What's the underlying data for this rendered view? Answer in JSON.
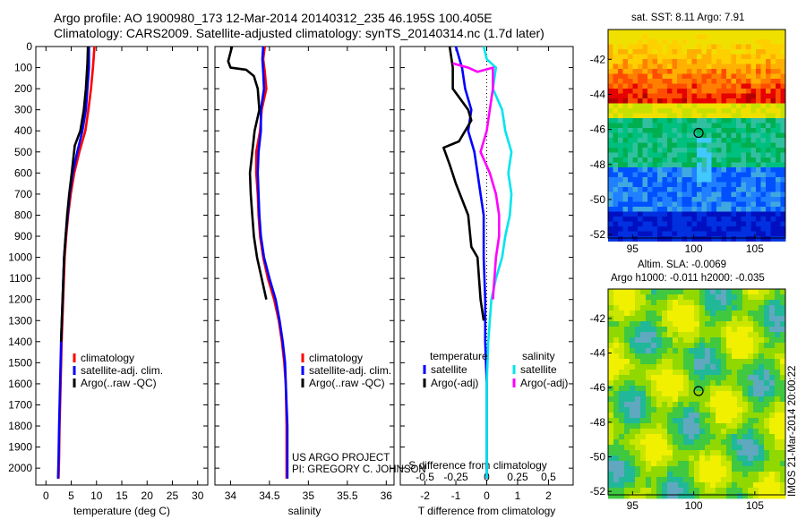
{
  "header": {
    "line1": "Argo profile: AO 1900980_173 12-Mar-2014 20140312_235 46.195S 100.405E",
    "line2": "Climatology: CARS2009. Satellite-adjusted climatology: synTS_20140314.nc (1.7d later)"
  },
  "credit": {
    "line1": "US ARGO PROJECT",
    "line2": "PI: GREGORY C. JOHNSON"
  },
  "imos_stamp": "IMOS 21-Mar-2014 20:00:22",
  "colors": {
    "climatology": "#ff0000",
    "satellite": "#0000ff",
    "argo": "#000000",
    "salinity_satellite": "#00e5ee",
    "salinity_argo": "#ff00ff"
  },
  "chart_data": [
    {
      "type": "line",
      "id": "temperature",
      "xlabel": "temperature (deg C)",
      "xlim": [
        -2,
        32
      ],
      "xticks": [
        0,
        5,
        10,
        15,
        20,
        25,
        30
      ],
      "ylim": [
        0,
        2080
      ],
      "yticks": [
        0,
        100,
        200,
        300,
        400,
        500,
        600,
        700,
        800,
        900,
        1000,
        1100,
        1200,
        1300,
        1400,
        1500,
        1600,
        1700,
        1800,
        1900,
        2000
      ],
      "legend": [
        "climatology",
        "satellite-adj. clim.",
        "Argo(..raw -QC)"
      ],
      "series": [
        {
          "name": "climatology",
          "color": "#ff0000",
          "points": [
            [
              9.6,
              0
            ],
            [
              9.3,
              100
            ],
            [
              8.9,
              200
            ],
            [
              8.4,
              300
            ],
            [
              7.8,
              400
            ],
            [
              6.6,
              500
            ],
            [
              5.6,
              600
            ],
            [
              4.9,
              700
            ],
            [
              4.4,
              800
            ],
            [
              4.0,
              900
            ],
            [
              3.7,
              1000
            ],
            [
              3.4,
              1200
            ],
            [
              3.1,
              1400
            ],
            [
              2.9,
              1600
            ],
            [
              2.7,
              1800
            ],
            [
              2.6,
              1950
            ],
            [
              2.5,
              2050
            ]
          ]
        },
        {
          "name": "satellite-adj. clim.",
          "color": "#0000ff",
          "points": [
            [
              8.5,
              0
            ],
            [
              8.5,
              100
            ],
            [
              8.2,
              200
            ],
            [
              7.9,
              300
            ],
            [
              7.2,
              400
            ],
            [
              6.2,
              500
            ],
            [
              5.3,
              600
            ],
            [
              4.7,
              700
            ],
            [
              4.3,
              800
            ],
            [
              3.9,
              900
            ],
            [
              3.6,
              1000
            ],
            [
              3.3,
              1200
            ],
            [
              3.0,
              1400
            ],
            [
              2.8,
              1600
            ],
            [
              2.6,
              1800
            ],
            [
              2.5,
              1950
            ],
            [
              2.4,
              2050
            ]
          ]
        },
        {
          "name": "Argo(..raw -QC)",
          "color": "#000000",
          "points": [
            [
              8.3,
              0
            ],
            [
              8.2,
              80
            ],
            [
              7.9,
              200
            ],
            [
              7.5,
              300
            ],
            [
              6.8,
              400
            ],
            [
              5.7,
              470
            ],
            [
              5.1,
              600
            ],
            [
              4.6,
              700
            ],
            [
              4.2,
              800
            ],
            [
              3.9,
              900
            ],
            [
              3.6,
              1000
            ],
            [
              3.3,
              1200
            ],
            [
              3.0,
              1400
            ]
          ]
        }
      ]
    },
    {
      "type": "line",
      "id": "salinity",
      "xlabel": "salinity",
      "xlim": [
        33.8,
        36.1
      ],
      "xticks": [
        34,
        34.5,
        35,
        35.5,
        36
      ],
      "ylim": [
        0,
        2080
      ],
      "yticks": [
        0,
        100,
        200,
        300,
        400,
        500,
        600,
        700,
        800,
        900,
        1000,
        1100,
        1200,
        1300,
        1400,
        1500,
        1600,
        1700,
        1800,
        1900,
        2000
      ],
      "legend": [
        "climatology",
        "satellite-adj. clim.",
        "Argo(..raw -QC)"
      ],
      "series": [
        {
          "name": "climatology",
          "color": "#ff0000",
          "points": [
            [
              34.44,
              0
            ],
            [
              34.42,
              60
            ],
            [
              34.44,
              120
            ],
            [
              34.46,
              200
            ],
            [
              34.4,
              300
            ],
            [
              34.38,
              400
            ],
            [
              34.33,
              500
            ],
            [
              34.33,
              600
            ],
            [
              34.35,
              700
            ],
            [
              34.36,
              800
            ],
            [
              34.38,
              900
            ],
            [
              34.42,
              1000
            ],
            [
              34.48,
              1100
            ],
            [
              34.56,
              1200
            ],
            [
              34.62,
              1300
            ],
            [
              34.66,
              1400
            ],
            [
              34.69,
              1500
            ],
            [
              34.71,
              1600
            ],
            [
              34.72,
              1800
            ],
            [
              34.72,
              2050
            ]
          ]
        },
        {
          "name": "satellite-adj. clim.",
          "color": "#0000ff",
          "points": [
            [
              34.42,
              0
            ],
            [
              34.41,
              60
            ],
            [
              34.42,
              120
            ],
            [
              34.43,
              200
            ],
            [
              34.39,
              300
            ],
            [
              34.39,
              400
            ],
            [
              34.36,
              500
            ],
            [
              34.35,
              600
            ],
            [
              34.36,
              700
            ],
            [
              34.37,
              800
            ],
            [
              34.39,
              900
            ],
            [
              34.43,
              1000
            ],
            [
              34.5,
              1100
            ],
            [
              34.58,
              1200
            ],
            [
              34.63,
              1300
            ],
            [
              34.67,
              1400
            ],
            [
              34.7,
              1500
            ],
            [
              34.71,
              1600
            ],
            [
              34.73,
              1800
            ],
            [
              34.73,
              2050
            ]
          ]
        },
        {
          "name": "Argo(..raw -QC)",
          "color": "#000000",
          "points": [
            [
              34.02,
              0
            ],
            [
              33.97,
              70
            ],
            [
              34.0,
              100
            ],
            [
              34.2,
              110
            ],
            [
              34.3,
              140
            ],
            [
              34.35,
              200
            ],
            [
              34.37,
              300
            ],
            [
              34.31,
              400
            ],
            [
              34.28,
              500
            ],
            [
              34.25,
              600
            ],
            [
              34.26,
              700
            ],
            [
              34.28,
              800
            ],
            [
              34.3,
              900
            ],
            [
              34.34,
              1000
            ],
            [
              34.4,
              1100
            ],
            [
              34.46,
              1200
            ]
          ]
        }
      ]
    },
    {
      "type": "line",
      "id": "differences",
      "xlabel": "T difference from climatology",
      "xlim": [
        -2.8,
        2.8
      ],
      "xticks": [
        -2,
        -1,
        0,
        1,
        2
      ],
      "top_label": "S difference from climatology",
      "top_ticks": [
        "-0.5",
        "-0.25",
        "0",
        "0.25",
        "0.5"
      ],
      "top_tick_values": [
        -2,
        -1,
        0,
        1,
        2
      ],
      "ylim": [
        0,
        2080
      ],
      "legend_headers": [
        "temperature",
        "salinity"
      ],
      "legend": [
        "satellite",
        "Argo(-adj)",
        "satellite",
        "Argo(-adj)"
      ],
      "series": [
        {
          "name": "satellite",
          "color": "#0000ff",
          "points": [
            [
              -1.0,
              0
            ],
            [
              -0.8,
              100
            ],
            [
              -0.7,
              200
            ],
            [
              -0.5,
              300
            ],
            [
              -0.6,
              400
            ],
            [
              -0.4,
              500
            ],
            [
              -0.3,
              600
            ],
            [
              -0.2,
              700
            ],
            [
              -0.1,
              800
            ],
            [
              -0.1,
              1000
            ],
            [
              -0.05,
              1200
            ],
            [
              -0.05,
              1400
            ],
            [
              0,
              1600
            ],
            [
              0,
              2050
            ]
          ]
        },
        {
          "name": "Argo(-adj)",
          "color": "#000000",
          "points": [
            [
              -1.2,
              0
            ],
            [
              -1.1,
              100
            ],
            [
              -1.1,
              200
            ],
            [
              -0.6,
              300
            ],
            [
              -0.5,
              350
            ],
            [
              -0.9,
              450
            ],
            [
              -1.4,
              480
            ],
            [
              -1.2,
              560
            ],
            [
              -1.0,
              650
            ],
            [
              -0.6,
              800
            ],
            [
              -0.5,
              950
            ],
            [
              -0.3,
              1000
            ],
            [
              -0.2,
              1200
            ],
            [
              -0.1,
              1300
            ]
          ]
        },
        {
          "name": "satellite",
          "color": "#00e5ee",
          "points": [
            [
              -0.1,
              0
            ],
            [
              0,
              60
            ],
            [
              0.3,
              100
            ],
            [
              0.2,
              200
            ],
            [
              0.5,
              300
            ],
            [
              0.6,
              400
            ],
            [
              0.8,
              500
            ],
            [
              0.7,
              600
            ],
            [
              0.8,
              700
            ],
            [
              0.75,
              800
            ],
            [
              0.6,
              900
            ],
            [
              0.5,
              1000
            ],
            [
              0.3,
              1100
            ],
            [
              0.15,
              1200
            ],
            [
              0.05,
              1400
            ],
            [
              0,
              1600
            ],
            [
              0,
              2050
            ]
          ]
        },
        {
          "name": "Argo(-adj)",
          "color": "#ff00ff",
          "points": [
            [
              -1.1,
              80
            ],
            [
              -0.6,
              100
            ],
            [
              -0.3,
              120
            ],
            [
              0.2,
              100
            ],
            [
              0.2,
              200
            ],
            [
              0.1,
              300
            ],
            [
              0.0,
              400
            ],
            [
              -0.2,
              500
            ],
            [
              0.1,
              600
            ],
            [
              0.3,
              700
            ],
            [
              0.4,
              800
            ],
            [
              0.4,
              900
            ],
            [
              0.3,
              1000
            ],
            [
              0.2,
              1200
            ]
          ]
        }
      ]
    },
    {
      "type": "heatmap",
      "id": "sst_map",
      "title": "sat. SST: 8.11  Argo: 7.91",
      "xticks": [
        95,
        100,
        105
      ],
      "yticks": [
        -42,
        -44,
        -46,
        -48,
        -50,
        -52
      ],
      "xlim": [
        93,
        107.5
      ],
      "ylim": [
        -52.2,
        -40.3
      ],
      "marker": [
        100.4,
        -46.2
      ]
    },
    {
      "type": "heatmap",
      "id": "sla_map",
      "title_line1": "Altim. SLA: -0.0069",
      "title_line2": "Argo h1000: -0.011 h2000: -0.035",
      "xticks": [
        95,
        100,
        105
      ],
      "yticks": [
        -42,
        -44,
        -46,
        -48,
        -50,
        -52
      ],
      "xlim": [
        93,
        107.5
      ],
      "ylim": [
        -52.2,
        -40.3
      ],
      "marker": [
        100.4,
        -46.2
      ]
    }
  ]
}
